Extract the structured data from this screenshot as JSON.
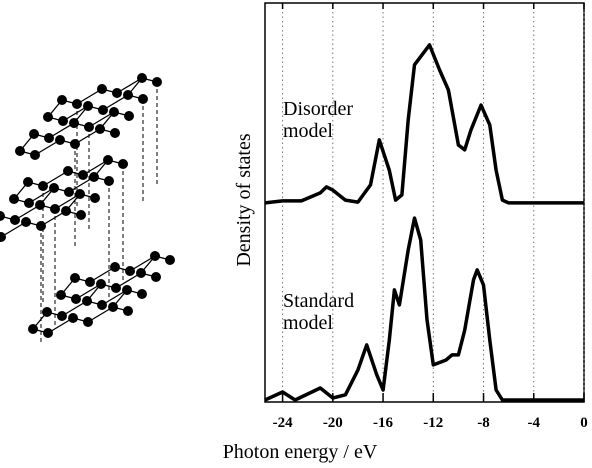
{
  "chart_data": {
    "type": "line",
    "x_label": "Photon energy / eV",
    "y_label": "Density of states",
    "xlim": [
      -25.4,
      0
    ],
    "xticks": [
      -24,
      -20,
      -16,
      -12,
      -8,
      -4,
      0
    ],
    "ylim": [
      0,
      100
    ],
    "grid": true,
    "series": [
      {
        "name": "Disorder model",
        "color": "#000000",
        "x": [
          -25.4,
          -24,
          -22.5,
          -21,
          -20.5,
          -20,
          -19,
          -18,
          -17,
          -16.3,
          -15.5,
          -15,
          -14.5,
          -14,
          -13.5,
          -12.3,
          -11.5,
          -10.8,
          -10,
          -9.5,
          -9,
          -8.2,
          -7.5,
          -7,
          -6.5,
          -6,
          0
        ],
        "values": [
          49.9,
          50.4,
          50.4,
          52.4,
          53.9,
          53.1,
          50.6,
          50.1,
          54.4,
          65.7,
          58.1,
          50.6,
          51.9,
          70.7,
          84.5,
          89.5,
          83.2,
          78.2,
          64.4,
          63.2,
          68.2,
          74.4,
          69.4,
          58.1,
          50.6,
          49.9,
          49.9
        ]
      },
      {
        "name": "Standard model",
        "color": "#000000",
        "x": [
          -25.4,
          -24,
          -23,
          -21,
          -20,
          -19,
          -18,
          -17.3,
          -16.5,
          -16,
          -15.5,
          -15.1,
          -14.7,
          -14,
          -13.5,
          -13,
          -12.5,
          -12,
          -11,
          -10.5,
          -10,
          -9.5,
          -8.8,
          -8.5,
          -8,
          -7.5,
          -7,
          -6.5,
          0
        ],
        "values": [
          0.5,
          2.5,
          0.5,
          3.5,
          1.0,
          1.8,
          8.0,
          14.3,
          6.8,
          3.0,
          15.5,
          28.1,
          24.3,
          38.1,
          46.1,
          40.6,
          20.6,
          9.3,
          10.5,
          11.8,
          11.8,
          18.0,
          30.6,
          33.1,
          29.3,
          15.5,
          3.0,
          0.5,
          0.5
        ]
      }
    ]
  }
}
